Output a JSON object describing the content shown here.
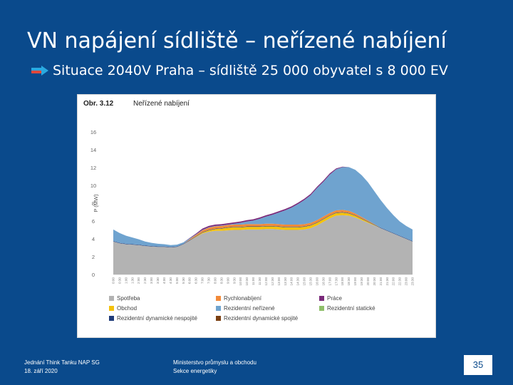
{
  "slide": {
    "title": "VN napájení sídliště – neřízené nabíjení",
    "bullet": "Situace 2040V Praha – sídliště 25 000 obyvatel s 8 000 EV",
    "footer_left_line1": "Jednání Think Tanku NAP SG",
    "footer_left_line2": "18. září 2020",
    "footer_mid_line1": "Ministerstvo průmyslu a obchodu",
    "footer_mid_line2": "Sekce energetiky",
    "page_number": "35"
  },
  "figure": {
    "label": "Obr.  3.12",
    "caption": "Neřízené nabíjení"
  },
  "chart_data": {
    "type": "area",
    "stacked": true,
    "ylabel": "P (MW)",
    "ylim": [
      0,
      16
    ],
    "yticks": [
      0,
      2,
      4,
      6,
      8,
      10,
      12,
      14,
      16
    ],
    "x": [
      "0:00",
      "0:30",
      "1:00",
      "1:30",
      "2:00",
      "2:30",
      "3:00",
      "3:30",
      "4:00",
      "4:30",
      "5:00",
      "5:30",
      "6:00",
      "6:30",
      "7:00",
      "7:30",
      "8:00",
      "8:30",
      "9:00",
      "9:30",
      "10:00",
      "10:30",
      "11:00",
      "11:30",
      "12:00",
      "12:30",
      "13:00",
      "13:30",
      "14:00",
      "14:30",
      "15:00",
      "15:30",
      "16:00",
      "16:30",
      "17:00",
      "17:30",
      "18:00",
      "18:30",
      "19:00",
      "19:30",
      "20:00",
      "20:30",
      "21:00",
      "21:30",
      "22:00",
      "22:30",
      "23:00",
      "23:30"
    ],
    "grid": false,
    "legend_position": "bottom",
    "series": [
      {
        "name": "Spotřeba",
        "color": "#b3b3b3",
        "values": [
          3.7,
          3.5,
          3.4,
          3.35,
          3.3,
          3.2,
          3.15,
          3.1,
          3.1,
          3.05,
          3.1,
          3.4,
          3.8,
          4.2,
          4.6,
          4.8,
          4.9,
          4.9,
          4.95,
          5.0,
          5.0,
          5.05,
          5.05,
          5.05,
          5.1,
          5.1,
          5.05,
          5.0,
          5.0,
          5.0,
          5.05,
          5.2,
          5.5,
          5.9,
          6.3,
          6.6,
          6.65,
          6.6,
          6.4,
          6.1,
          5.8,
          5.5,
          5.2,
          4.9,
          4.6,
          4.3,
          4.0,
          3.7
        ]
      },
      {
        "name": "Obchod",
        "color": "#f4c20d",
        "values": [
          0,
          0,
          0,
          0,
          0,
          0,
          0,
          0,
          0,
          0,
          0,
          0,
          0,
          0.05,
          0.1,
          0.15,
          0.2,
          0.25,
          0.3,
          0.3,
          0.3,
          0.3,
          0.3,
          0.3,
          0.3,
          0.3,
          0.3,
          0.3,
          0.3,
          0.3,
          0.3,
          0.3,
          0.3,
          0.3,
          0.3,
          0.3,
          0.3,
          0.25,
          0.2,
          0.15,
          0.1,
          0.05,
          0,
          0,
          0,
          0,
          0,
          0
        ]
      },
      {
        "name": "Rezidentní dynamické nespojité",
        "color": "#1f3b7a",
        "values": [
          0.05,
          0.05,
          0.05,
          0.05,
          0.05,
          0.05,
          0.05,
          0.05,
          0.05,
          0.05,
          0.05,
          0.05,
          0.05,
          0.05,
          0.05,
          0.05,
          0.05,
          0.05,
          0.05,
          0.05,
          0.05,
          0.05,
          0.05,
          0.05,
          0.05,
          0.05,
          0.05,
          0.05,
          0.05,
          0.05,
          0.05,
          0.05,
          0.05,
          0.05,
          0.05,
          0.05,
          0.05,
          0.05,
          0.05,
          0.05,
          0.05,
          0.05,
          0.05,
          0.05,
          0.05,
          0.05,
          0.05,
          0.05
        ]
      },
      {
        "name": "Rychlonabíjení",
        "color": "#f28a3a",
        "values": [
          0,
          0,
          0,
          0,
          0,
          0,
          0,
          0,
          0,
          0,
          0,
          0,
          0.1,
          0.15,
          0.2,
          0.25,
          0.25,
          0.25,
          0.25,
          0.25,
          0.25,
          0.25,
          0.25,
          0.25,
          0.25,
          0.25,
          0.25,
          0.25,
          0.25,
          0.25,
          0.25,
          0.25,
          0.25,
          0.25,
          0.25,
          0.25,
          0.25,
          0.25,
          0.2,
          0.15,
          0.1,
          0.05,
          0,
          0,
          0,
          0,
          0,
          0
        ]
      },
      {
        "name": "Rezidentní neřízené",
        "color": "#6fa3cf",
        "values": [
          1.3,
          1.1,
          0.9,
          0.75,
          0.6,
          0.45,
          0.35,
          0.3,
          0.25,
          0.2,
          0.2,
          0.15,
          0.1,
          0.05,
          0.05,
          0.05,
          0.05,
          0.05,
          0.05,
          0.1,
          0.2,
          0.3,
          0.4,
          0.6,
          0.8,
          1.0,
          1.3,
          1.6,
          1.9,
          2.3,
          2.7,
          3.1,
          3.6,
          3.9,
          4.3,
          4.6,
          4.8,
          4.9,
          4.9,
          4.7,
          4.3,
          3.7,
          3.1,
          2.5,
          2.0,
          1.6,
          1.4,
          1.3
        ]
      },
      {
        "name": "Rezidentní dynamické spojité",
        "color": "#7b3f12",
        "values": [
          0,
          0,
          0,
          0,
          0,
          0,
          0,
          0,
          0,
          0,
          0,
          0,
          0,
          0,
          0,
          0,
          0,
          0,
          0,
          0,
          0,
          0,
          0,
          0,
          0,
          0,
          0,
          0,
          0,
          0,
          0,
          0,
          0,
          0,
          0,
          0,
          0,
          0,
          0,
          0,
          0,
          0,
          0,
          0,
          0,
          0,
          0,
          0
        ]
      },
      {
        "name": "Práce",
        "color": "#7a2a7a",
        "values": [
          0,
          0,
          0,
          0,
          0,
          0,
          0,
          0,
          0,
          0,
          0,
          0,
          0.05,
          0.1,
          0.15,
          0.15,
          0.15,
          0.15,
          0.15,
          0.15,
          0.15,
          0.15,
          0.15,
          0.15,
          0.15,
          0.15,
          0.15,
          0.15,
          0.15,
          0.15,
          0.15,
          0.15,
          0.15,
          0.15,
          0.15,
          0.1,
          0.05,
          0,
          0,
          0,
          0,
          0,
          0,
          0,
          0,
          0,
          0,
          0
        ]
      },
      {
        "name": "Rezidentní statické",
        "color": "#8fbf6a",
        "values": [
          0,
          0,
          0,
          0,
          0,
          0,
          0,
          0,
          0,
          0,
          0,
          0,
          0,
          0,
          0,
          0,
          0,
          0,
          0,
          0,
          0,
          0,
          0,
          0,
          0,
          0,
          0,
          0,
          0,
          0,
          0,
          0,
          0,
          0,
          0,
          0,
          0,
          0,
          0,
          0,
          0,
          0,
          0,
          0,
          0,
          0,
          0,
          0
        ]
      }
    ]
  },
  "legend": {
    "columns": [
      [
        "Spotřeba",
        "Obchod",
        "Rezidentní dynamické nespojité"
      ],
      [
        "Rychlonabíjení",
        "Rezidentní neřízené",
        "Rezidentní dynamické spojité"
      ],
      [
        "Práce",
        "Rezidentní statické"
      ]
    ],
    "colors": {
      "Spotřeba": "#b3b3b3",
      "Obchod": "#f4c20d",
      "Rezidentní dynamické nespojité": "#1f3b7a",
      "Rychlonabíjení": "#f28a3a",
      "Rezidentní neřízené": "#6fa3cf",
      "Rezidentní dynamické spojité": "#7b3f12",
      "Práce": "#7a2a7a",
      "Rezidentní statické": "#8fbf6a"
    }
  },
  "colors": {
    "background": "#0a4a8c",
    "bullet_arrow_blue": "#2aa9e0",
    "bullet_arrow_red": "#e0483c"
  }
}
